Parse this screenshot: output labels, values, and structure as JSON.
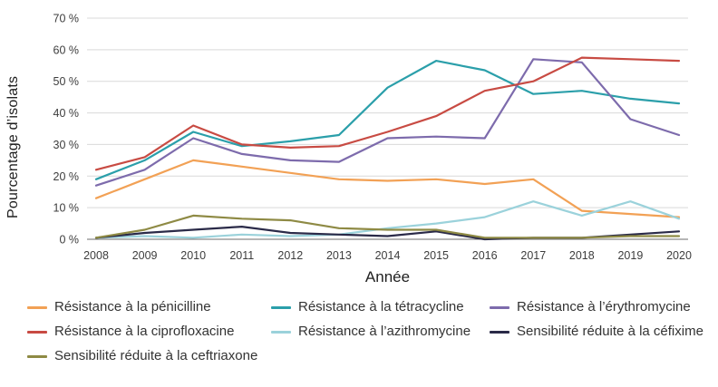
{
  "chart_data": {
    "type": "line",
    "title": "",
    "xlabel": "Année",
    "ylabel": "Pourcentage d’isolats",
    "x": [
      2008,
      2009,
      2010,
      2011,
      2012,
      2013,
      2014,
      2015,
      2016,
      2017,
      2018,
      2019,
      2020
    ],
    "ylim": [
      0,
      70
    ],
    "ytick_step": 10,
    "ytick_suffix": " %",
    "grid": true,
    "legend_position": "bottom",
    "grid_color": "#d9d9d9",
    "zero_axis_color": "#6e6e6e",
    "series": [
      {
        "name": "Résistance à la pénicilline",
        "color": "#F2A155",
        "values": [
          13,
          19,
          25,
          23,
          21,
          19,
          18.5,
          19,
          17.5,
          19,
          9,
          8,
          7
        ]
      },
      {
        "name": "Résistance à la tétracycline",
        "color": "#2B9FAA",
        "values": [
          19,
          25,
          34,
          29.5,
          31,
          33,
          48,
          56.5,
          53.5,
          46,
          47,
          44.5,
          43
        ]
      },
      {
        "name": "Résistance à l’érythromycine",
        "color": "#7D6BAC",
        "values": [
          17,
          22,
          32,
          27,
          25,
          24.5,
          32,
          32.5,
          32,
          57,
          56,
          38,
          33
        ]
      },
      {
        "name": "Résistance à la ciprofloxacine",
        "color": "#C84B43",
        "values": [
          22,
          26,
          36,
          30,
          29,
          29.5,
          34,
          39,
          47,
          50,
          57.5,
          57,
          56.5
        ]
      },
      {
        "name": "Résistance à l’azithromycine",
        "color": "#9BD2DB",
        "values": [
          0.5,
          1,
          0.5,
          1.5,
          1,
          1.5,
          3.5,
          5,
          7,
          12,
          7.5,
          12,
          6.5
        ]
      },
      {
        "name": "Sensibilité réduite à la céfixime",
        "color": "#2A2A48",
        "values": [
          0.5,
          2,
          3,
          4,
          2,
          1.5,
          1,
          2.5,
          0,
          0.5,
          0.5,
          1.5,
          2.5
        ]
      },
      {
        "name": "Sensibilité réduite à la ceftriaxone",
        "color": "#8E8A44",
        "values": [
          0.5,
          3,
          7.5,
          6.5,
          6,
          3.5,
          3,
          3,
          0.5,
          0.5,
          0.5,
          1,
          1
        ]
      }
    ]
  }
}
